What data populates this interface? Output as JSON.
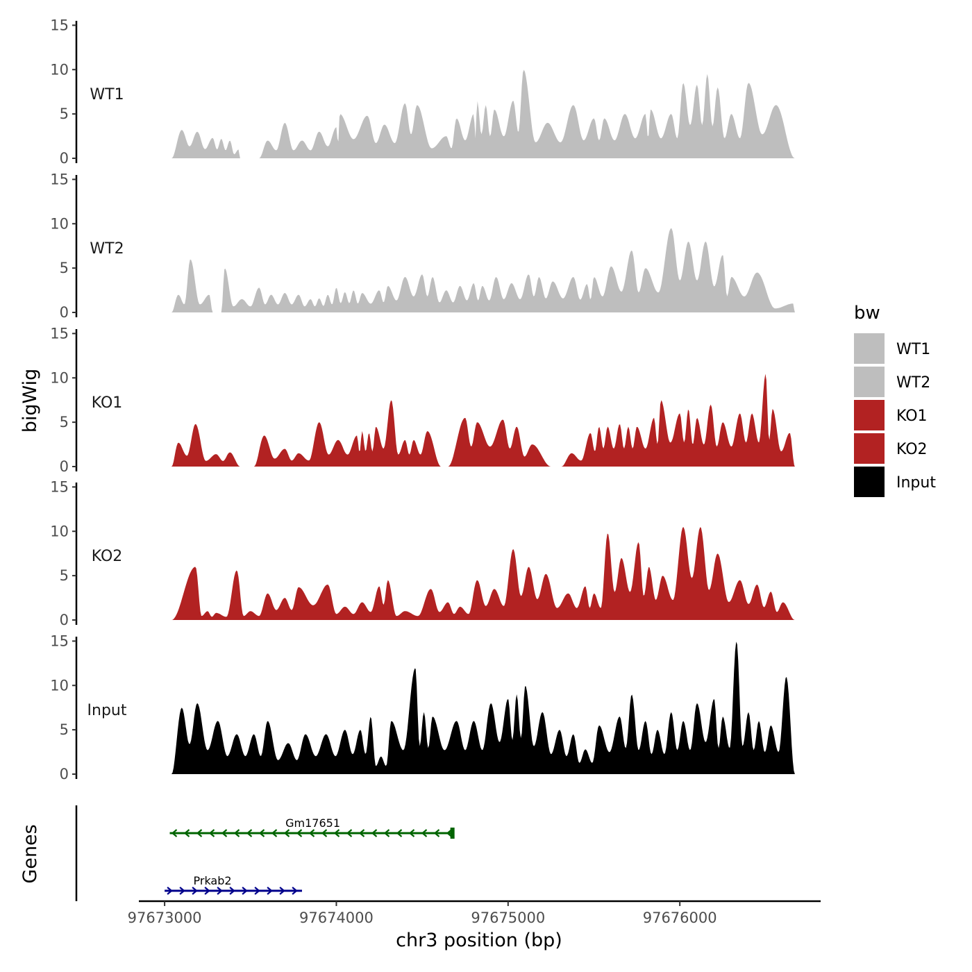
{
  "chart_data": {
    "type": "area",
    "ylabel": "bigWig",
    "xlabel": "chr3 position (bp)",
    "genes_label": "Genes",
    "xlim": [
      97672850,
      97676820
    ],
    "ylim": [
      0,
      15.5
    ],
    "y_ticks": [
      0,
      5,
      10,
      15
    ],
    "x_ticks": [
      97673000,
      97674000,
      97675000,
      97676000
    ],
    "x_tick_labels": [
      "97673000",
      "97674000",
      "97675000",
      "97676000"
    ],
    "legend": {
      "title": "bw",
      "entries": [
        {
          "label": "WT1",
          "color": "#bebebe"
        },
        {
          "label": "WT2",
          "color": "#bebebe"
        },
        {
          "label": "KO1",
          "color": "#b22222"
        },
        {
          "label": "KO2",
          "color": "#b22222"
        },
        {
          "label": "Input",
          "color": "#000000"
        }
      ]
    },
    "track_range": [
      97673040,
      97676670
    ],
    "tracks": [
      {
        "name": "WT1",
        "color": "#bebebe",
        "peaks": [
          [
            97673100,
            3.2
          ],
          [
            97673190,
            3.0
          ],
          [
            97673280,
            2.3
          ],
          [
            97673330,
            2.2
          ],
          [
            97673380,
            2.0
          ],
          [
            97673430,
            1.0
          ],
          [
            97673600,
            2.0
          ],
          [
            97673700,
            4.0
          ],
          [
            97673800,
            2.0
          ],
          [
            97673900,
            3.0
          ],
          [
            97674000,
            3.5
          ],
          [
            97674020,
            5.0
          ],
          [
            97674180,
            4.8
          ],
          [
            97674280,
            3.8
          ],
          [
            97674400,
            6.2
          ],
          [
            97674470,
            6.0
          ],
          [
            97674640,
            2.5
          ],
          [
            97674700,
            4.5
          ],
          [
            97674800,
            5.0
          ],
          [
            97674820,
            6.5
          ],
          [
            97674870,
            6.0
          ],
          [
            97674920,
            5.5
          ],
          [
            97675030,
            6.5
          ],
          [
            97675090,
            10.0
          ],
          [
            97675230,
            4.0
          ],
          [
            97675380,
            6.0
          ],
          [
            97675500,
            4.5
          ],
          [
            97675560,
            4.5
          ],
          [
            97675680,
            5.0
          ],
          [
            97675800,
            5.0
          ],
          [
            97675830,
            5.5
          ],
          [
            97675950,
            5.0
          ],
          [
            97676020,
            8.5
          ],
          [
            97676100,
            8.3
          ],
          [
            97676160,
            9.5
          ],
          [
            97676220,
            8.0
          ],
          [
            97676300,
            5.0
          ],
          [
            97676400,
            8.5
          ],
          [
            97676560,
            6.0
          ]
        ],
        "gaps": [
          [
            97673440,
            97673550
          ]
        ]
      },
      {
        "name": "WT2",
        "color": "#bebebe",
        "peaks": [
          [
            97673080,
            2.0
          ],
          [
            97673150,
            6.0
          ],
          [
            97673260,
            2.0
          ],
          [
            97673350,
            5.0
          ],
          [
            97673450,
            1.5
          ],
          [
            97673550,
            2.8
          ],
          [
            97673620,
            2.0
          ],
          [
            97673700,
            2.2
          ],
          [
            97673780,
            2.0
          ],
          [
            97673850,
            1.5
          ],
          [
            97673900,
            1.6
          ],
          [
            97673950,
            2.0
          ],
          [
            97674000,
            2.8
          ],
          [
            97674050,
            2.3
          ],
          [
            97674100,
            2.5
          ],
          [
            97674150,
            2.2
          ],
          [
            97674250,
            2.5
          ],
          [
            97674300,
            3.0
          ],
          [
            97674400,
            4.0
          ],
          [
            97674500,
            4.3
          ],
          [
            97674560,
            4.0
          ],
          [
            97674640,
            2.5
          ],
          [
            97674720,
            3.0
          ],
          [
            97674800,
            3.3
          ],
          [
            97674850,
            3.0
          ],
          [
            97674930,
            4.0
          ],
          [
            97675020,
            3.3
          ],
          [
            97675120,
            4.3
          ],
          [
            97675180,
            4.0
          ],
          [
            97675260,
            3.5
          ],
          [
            97675380,
            4.0
          ],
          [
            97675460,
            3.2
          ],
          [
            97675500,
            4.0
          ],
          [
            97675600,
            5.2
          ],
          [
            97675720,
            7.0
          ],
          [
            97675800,
            5.0
          ],
          [
            97675950,
            9.5
          ],
          [
            97676050,
            8.0
          ],
          [
            97676150,
            8.0
          ],
          [
            97676250,
            6.5
          ],
          [
            97676300,
            4.0
          ],
          [
            97676450,
            4.5
          ],
          [
            97676660,
            1.0
          ]
        ],
        "gaps": [
          [
            97673280,
            97673330
          ]
        ]
      },
      {
        "name": "KO1",
        "color": "#b22222",
        "peaks": [
          [
            97673080,
            2.7
          ],
          [
            97673180,
            4.8
          ],
          [
            97673300,
            1.4
          ],
          [
            97673380,
            1.6
          ],
          [
            97673580,
            3.5
          ],
          [
            97673700,
            2.0
          ],
          [
            97673780,
            1.5
          ],
          [
            97673900,
            5.0
          ],
          [
            97674010,
            3.0
          ],
          [
            97674120,
            3.5
          ],
          [
            97674150,
            4.0
          ],
          [
            97674190,
            3.8
          ],
          [
            97674230,
            4.5
          ],
          [
            97674320,
            7.5
          ],
          [
            97674400,
            3.0
          ],
          [
            97674450,
            3.0
          ],
          [
            97674530,
            4.0
          ],
          [
            97674750,
            5.5
          ],
          [
            97674820,
            5.0
          ],
          [
            97674970,
            5.3
          ],
          [
            97675050,
            4.5
          ],
          [
            97675140,
            2.5
          ],
          [
            97675370,
            1.5
          ],
          [
            97675480,
            3.8
          ],
          [
            97675530,
            4.5
          ],
          [
            97675580,
            4.5
          ],
          [
            97675650,
            4.8
          ],
          [
            97675700,
            4.5
          ],
          [
            97675750,
            4.5
          ],
          [
            97675850,
            5.5
          ],
          [
            97675890,
            7.5
          ],
          [
            97676000,
            6.0
          ],
          [
            97676050,
            6.5
          ],
          [
            97676100,
            5.5
          ],
          [
            97676180,
            7.0
          ],
          [
            97676250,
            5.0
          ],
          [
            97676350,
            6.0
          ],
          [
            97676420,
            6.0
          ],
          [
            97676500,
            10.5
          ],
          [
            97676540,
            6.5
          ],
          [
            97676640,
            3.8
          ]
        ],
        "gaps": [
          [
            97673440,
            97673520
          ],
          [
            97674610,
            97674650
          ],
          [
            97675250,
            97675310
          ]
        ]
      },
      {
        "name": "KO2",
        "color": "#b22222",
        "peaks": [
          [
            97673180,
            6.0
          ],
          [
            97673250,
            1.0
          ],
          [
            97673300,
            0.8
          ],
          [
            97673420,
            5.6
          ],
          [
            97673500,
            1.0
          ],
          [
            97673600,
            3.0
          ],
          [
            97673700,
            2.5
          ],
          [
            97673780,
            3.7
          ],
          [
            97673950,
            4.0
          ],
          [
            97674050,
            1.5
          ],
          [
            97674150,
            2.0
          ],
          [
            97674250,
            3.8
          ],
          [
            97674300,
            4.5
          ],
          [
            97674400,
            1.0
          ],
          [
            97674550,
            3.5
          ],
          [
            97674650,
            2.0
          ],
          [
            97674720,
            1.5
          ],
          [
            97674820,
            4.5
          ],
          [
            97674920,
            3.5
          ],
          [
            97675030,
            8.0
          ],
          [
            97675120,
            6.0
          ],
          [
            97675220,
            5.2
          ],
          [
            97675350,
            3.0
          ],
          [
            97675450,
            3.8
          ],
          [
            97675500,
            3.0
          ],
          [
            97675580,
            9.8
          ],
          [
            97675660,
            7.0
          ],
          [
            97675760,
            8.8
          ],
          [
            97675820,
            6.0
          ],
          [
            97675900,
            5.0
          ],
          [
            97676020,
            10.5
          ],
          [
            97676120,
            10.5
          ],
          [
            97676220,
            7.5
          ],
          [
            97676350,
            4.5
          ],
          [
            97676450,
            4.0
          ],
          [
            97676530,
            3.2
          ],
          [
            97676600,
            2.0
          ]
        ],
        "gaps": []
      },
      {
        "name": "Input",
        "color": "#000000",
        "peaks": [
          [
            97673040,
            5.5
          ],
          [
            97673100,
            7.5
          ],
          [
            97673190,
            8.0
          ],
          [
            97673310,
            6.0
          ],
          [
            97673420,
            4.5
          ],
          [
            97673520,
            4.5
          ],
          [
            97673600,
            6.0
          ],
          [
            97673720,
            3.5
          ],
          [
            97673820,
            4.5
          ],
          [
            97673940,
            4.5
          ],
          [
            97674050,
            5.0
          ],
          [
            97674140,
            5.0
          ],
          [
            97674200,
            6.5
          ],
          [
            97674260,
            2.0
          ],
          [
            97674320,
            6.0
          ],
          [
            97674460,
            12.0
          ],
          [
            97674510,
            7.0
          ],
          [
            97674560,
            6.5
          ],
          [
            97674700,
            6.0
          ],
          [
            97674800,
            6.0
          ],
          [
            97674900,
            8.0
          ],
          [
            97675000,
            8.5
          ],
          [
            97675050,
            9.0
          ],
          [
            97675100,
            10.0
          ],
          [
            97675200,
            7.0
          ],
          [
            97675300,
            5.0
          ],
          [
            97675380,
            4.5
          ],
          [
            97675450,
            2.8
          ],
          [
            97675530,
            5.5
          ],
          [
            97675650,
            6.5
          ],
          [
            97675720,
            9.0
          ],
          [
            97675800,
            6.0
          ],
          [
            97675870,
            5.0
          ],
          [
            97675950,
            7.0
          ],
          [
            97676020,
            6.0
          ],
          [
            97676100,
            8.0
          ],
          [
            97676200,
            8.5
          ],
          [
            97676250,
            6.5
          ],
          [
            97676330,
            15.0
          ],
          [
            97676400,
            7.0
          ],
          [
            97676460,
            6.0
          ],
          [
            97676530,
            5.5
          ],
          [
            97676620,
            11.0
          ]
        ],
        "gaps": []
      }
    ],
    "genes": [
      {
        "name": "Gm17651",
        "start": 97673030,
        "end": 97674680,
        "strand": "-",
        "color": "#006400"
      },
      {
        "name": "Prkab2",
        "start": 97673000,
        "end": 97673800,
        "strand": "+",
        "color": "#00008b"
      }
    ]
  }
}
